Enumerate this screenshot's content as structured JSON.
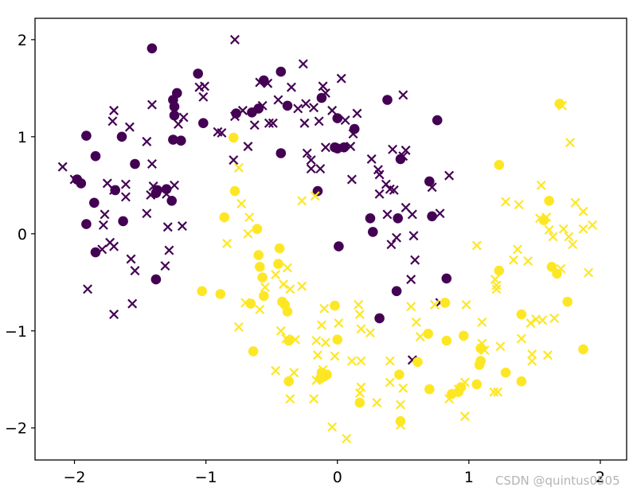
{
  "chart_data": {
    "type": "scatter",
    "title": "",
    "xlabel": "",
    "ylabel": "",
    "xlim": [
      -2.3,
      2.2
    ],
    "ylim": [
      -2.33,
      2.22
    ],
    "grid": false,
    "xticks": [
      -2,
      -1,
      0,
      1,
      2
    ],
    "yticks": [
      -2,
      -1,
      0,
      1,
      2
    ],
    "xtick_labels": [
      "−2",
      "−1",
      "0",
      "1",
      "2"
    ],
    "ytick_labels": [
      "−2",
      "−1",
      "0",
      "1",
      "2"
    ],
    "colors": {
      "class_0": "#440154",
      "class_1": "#fde725"
    },
    "series": [
      {
        "marker": "circle",
        "class": 0,
        "points": [
          [
            -1.41,
            1.91
          ],
          [
            -1.06,
            1.65
          ],
          [
            -0.56,
            1.58
          ],
          [
            -0.43,
            1.67
          ],
          [
            -0.12,
            1.4
          ],
          [
            -0.38,
            1.32
          ],
          [
            -1.22,
            1.45
          ],
          [
            -1.24,
            1.31
          ],
          [
            -1.25,
            1.38
          ],
          [
            -1.24,
            1.22
          ],
          [
            -1.02,
            1.14
          ],
          [
            -0.77,
            1.24
          ],
          [
            -0.65,
            1.25
          ],
          [
            0.0,
            1.19
          ],
          [
            0.13,
            1.08
          ],
          [
            -0.6,
            1.29
          ],
          [
            -1.91,
            1.01
          ],
          [
            -1.64,
            1.0
          ],
          [
            -1.19,
            0.96
          ],
          [
            -1.25,
            0.97
          ],
          [
            -0.43,
            0.83
          ],
          [
            -0.02,
            0.89
          ],
          [
            0.0,
            0.88
          ],
          [
            0.05,
            0.89
          ],
          [
            0.38,
            1.38
          ],
          [
            0.76,
            1.17
          ],
          [
            -1.84,
            0.8
          ],
          [
            -1.54,
            0.72
          ],
          [
            -1.98,
            0.56
          ],
          [
            -1.95,
            0.52
          ],
          [
            -1.85,
            0.32
          ],
          [
            -1.69,
            0.45
          ],
          [
            -1.38,
            0.42
          ],
          [
            -1.37,
            0.45
          ],
          [
            -1.3,
            0.46
          ],
          [
            -1.26,
            0.34
          ],
          [
            -0.15,
            0.44
          ],
          [
            0.48,
            0.77
          ],
          [
            0.7,
            0.54
          ],
          [
            -1.91,
            0.1
          ],
          [
            -1.63,
            0.13
          ],
          [
            -1.84,
            -0.19
          ],
          [
            -1.38,
            -0.47
          ],
          [
            0.01,
            -0.13
          ],
          [
            0.25,
            0.16
          ],
          [
            0.27,
            0.02
          ],
          [
            0.46,
            0.16
          ],
          [
            0.72,
            0.18
          ],
          [
            0.83,
            -0.46
          ],
          [
            0.45,
            -0.59
          ],
          [
            0.32,
            -0.87
          ]
        ]
      },
      {
        "marker": "x",
        "class": 0,
        "points": [
          [
            -0.78,
            2.0
          ],
          [
            -0.26,
            1.75
          ],
          [
            -0.59,
            1.56
          ],
          [
            -0.53,
            1.55
          ],
          [
            -0.35,
            1.51
          ],
          [
            -0.11,
            1.52
          ],
          [
            0.03,
            1.6
          ],
          [
            0.5,
            1.43
          ],
          [
            -1.05,
            1.51
          ],
          [
            -1.01,
            1.52
          ],
          [
            -1.02,
            1.41
          ],
          [
            -0.72,
            1.27
          ],
          [
            -0.57,
            1.32
          ],
          [
            -0.45,
            1.38
          ],
          [
            -0.3,
            1.29
          ],
          [
            -0.24,
            1.34
          ],
          [
            -0.18,
            1.3
          ],
          [
            -0.09,
            1.45
          ],
          [
            -0.04,
            1.27
          ],
          [
            0.15,
            1.24
          ],
          [
            -1.7,
            1.27
          ],
          [
            -1.41,
            1.33
          ],
          [
            -1.17,
            1.2
          ],
          [
            -1.21,
            1.13
          ],
          [
            -0.78,
            1.21
          ],
          [
            -0.63,
            1.12
          ],
          [
            -0.49,
            1.14
          ],
          [
            -0.52,
            1.14
          ],
          [
            -0.25,
            1.14
          ],
          [
            -0.14,
            1.16
          ],
          [
            0.06,
            1.17
          ],
          [
            -1.71,
            1.16
          ],
          [
            -1.58,
            1.1
          ],
          [
            -0.91,
            1.05
          ],
          [
            -0.88,
            1.04
          ],
          [
            -0.68,
            0.9
          ],
          [
            -0.09,
            0.89
          ],
          [
            0.1,
            0.9
          ],
          [
            0.12,
            1.03
          ],
          [
            0.42,
            0.87
          ],
          [
            0.52,
            0.86
          ],
          [
            0.5,
            0.8
          ],
          [
            -1.45,
            0.95
          ],
          [
            -0.79,
            0.76
          ],
          [
            -0.23,
            0.83
          ],
          [
            -0.2,
            0.76
          ],
          [
            -0.2,
            0.67
          ],
          [
            -0.13,
            0.67
          ],
          [
            0.11,
            0.56
          ],
          [
            0.26,
            0.77
          ],
          [
            0.31,
            0.66
          ],
          [
            0.32,
            0.61
          ],
          [
            0.37,
            0.51
          ],
          [
            0.4,
            0.46
          ],
          [
            -2.09,
            0.69
          ],
          [
            -2.0,
            0.56
          ],
          [
            -1.75,
            0.52
          ],
          [
            -1.7,
            0.45
          ],
          [
            -1.61,
            0.51
          ],
          [
            -1.4,
            0.49
          ],
          [
            -1.41,
            0.72
          ],
          [
            -1.24,
            0.5
          ],
          [
            -1.3,
            0.41
          ],
          [
            0.32,
            0.41
          ],
          [
            0.43,
            0.45
          ],
          [
            0.72,
            0.48
          ],
          [
            0.52,
            0.27
          ],
          [
            0.85,
            0.6
          ],
          [
            -1.77,
            0.2
          ],
          [
            -1.61,
            0.38
          ],
          [
            -1.42,
            0.4
          ],
          [
            -1.45,
            0.21
          ],
          [
            -1.29,
            0.07
          ],
          [
            -1.18,
            0.08
          ],
          [
            -1.78,
            0.09
          ],
          [
            -1.73,
            -0.09
          ],
          [
            -1.79,
            -0.16
          ],
          [
            -1.7,
            -0.13
          ],
          [
            -1.57,
            -0.26
          ],
          [
            -1.54,
            -0.38
          ],
          [
            -1.31,
            -0.33
          ],
          [
            -1.28,
            -0.17
          ],
          [
            -1.9,
            -0.57
          ],
          [
            -1.7,
            -0.83
          ],
          [
            -1.56,
            -0.72
          ],
          [
            0.57,
            0.2
          ],
          [
            0.78,
            0.21
          ],
          [
            0.38,
            0.2
          ],
          [
            0.41,
            -0.11
          ],
          [
            0.45,
            -0.04
          ],
          [
            0.58,
            -0.02
          ],
          [
            0.59,
            -0.27
          ],
          [
            0.56,
            -0.47
          ],
          [
            0.78,
            -0.71
          ],
          [
            0.57,
            -1.3
          ]
        ]
      },
      {
        "marker": "circle",
        "class": 1,
        "points": [
          [
            1.69,
            1.34
          ],
          [
            -0.79,
            0.99
          ],
          [
            1.23,
            0.71
          ],
          [
            -0.78,
            0.44
          ],
          [
            1.61,
            0.34
          ],
          [
            -0.86,
            0.17
          ],
          [
            -0.61,
            0.05
          ],
          [
            1.57,
            0.14
          ],
          [
            -0.6,
            -0.22
          ],
          [
            -0.59,
            -0.34
          ],
          [
            -0.57,
            -0.45
          ],
          [
            -0.44,
            -0.15
          ],
          [
            -0.45,
            -0.31
          ],
          [
            1.23,
            -0.38
          ],
          [
            1.63,
            -0.34
          ],
          [
            1.67,
            -0.41
          ],
          [
            -0.56,
            -0.64
          ],
          [
            -0.66,
            -0.72
          ],
          [
            -1.03,
            -0.59
          ],
          [
            -0.89,
            -0.62
          ],
          [
            -0.42,
            -0.7
          ],
          [
            -0.4,
            -0.73
          ],
          [
            -0.38,
            -0.8
          ],
          [
            1.75,
            -0.7
          ],
          [
            0.82,
            -0.71
          ],
          [
            -0.02,
            -0.74
          ],
          [
            -0.37,
            -1.1
          ],
          [
            0.0,
            -1.09
          ],
          [
            0.69,
            -1.03
          ],
          [
            0.83,
            -1.1
          ],
          [
            0.96,
            -1.05
          ],
          [
            1.09,
            -1.18
          ],
          [
            1.09,
            -1.31
          ],
          [
            1.4,
            -0.83
          ],
          [
            1.87,
            -1.19
          ],
          [
            -0.64,
            -1.21
          ],
          [
            -0.12,
            -1.43
          ],
          [
            -0.1,
            -1.47
          ],
          [
            -0.08,
            -1.45
          ],
          [
            -0.13,
            -1.49
          ],
          [
            0.61,
            -1.32
          ],
          [
            0.47,
            -1.45
          ],
          [
            1.08,
            -1.35
          ],
          [
            1.28,
            -1.43
          ],
          [
            -0.37,
            -1.52
          ],
          [
            0.7,
            -1.6
          ],
          [
            0.87,
            -1.65
          ],
          [
            0.92,
            -1.63
          ],
          [
            0.94,
            -1.58
          ],
          [
            1.06,
            -1.55
          ],
          [
            1.4,
            -1.52
          ],
          [
            0.17,
            -1.74
          ],
          [
            0.48,
            -1.93
          ]
        ]
      },
      {
        "marker": "x",
        "class": 1,
        "points": [
          [
            1.71,
            1.32
          ],
          [
            1.77,
            0.94
          ],
          [
            -0.75,
            0.68
          ],
          [
            -0.73,
            0.31
          ],
          [
            -0.67,
            0.17
          ],
          [
            -0.68,
            0.0
          ],
          [
            -0.84,
            -0.1
          ],
          [
            -0.27,
            0.34
          ],
          [
            -0.17,
            0.39
          ],
          [
            1.28,
            0.33
          ],
          [
            1.38,
            0.3
          ],
          [
            1.55,
            0.5
          ],
          [
            1.54,
            0.16
          ],
          [
            1.59,
            0.17
          ],
          [
            1.61,
            0.04
          ],
          [
            1.64,
            -0.03
          ],
          [
            1.76,
            -0.03
          ],
          [
            1.72,
            0.05
          ],
          [
            1.81,
            0.32
          ],
          [
            1.87,
            0.23
          ],
          [
            1.87,
            0.05
          ],
          [
            1.94,
            0.09
          ],
          [
            1.79,
            -0.11
          ],
          [
            1.06,
            -0.12
          ],
          [
            1.37,
            -0.16
          ],
          [
            1.34,
            -0.27
          ],
          [
            1.45,
            -0.28
          ],
          [
            1.7,
            -0.36
          ],
          [
            1.91,
            -0.4
          ],
          [
            1.2,
            -0.47
          ],
          [
            1.21,
            -0.53
          ],
          [
            1.21,
            -0.57
          ],
          [
            -0.47,
            -0.42
          ],
          [
            -0.41,
            -0.52
          ],
          [
            -0.36,
            -0.57
          ],
          [
            -0.27,
            -0.54
          ],
          [
            -0.55,
            -0.55
          ],
          [
            -0.59,
            -0.78
          ],
          [
            -0.38,
            -0.35
          ],
          [
            -0.75,
            -0.96
          ],
          [
            -0.7,
            -0.71
          ],
          [
            0.16,
            -0.73
          ],
          [
            0.56,
            -0.75
          ],
          [
            0.98,
            -0.73
          ],
          [
            0.74,
            -0.73
          ],
          [
            1.51,
            -0.88
          ],
          [
            1.56,
            -0.89
          ],
          [
            1.65,
            -0.87
          ],
          [
            1.47,
            -0.92
          ],
          [
            -0.1,
            -0.77
          ],
          [
            0.17,
            -0.83
          ],
          [
            -0.12,
            -0.94
          ],
          [
            0.01,
            -0.92
          ],
          [
            0.18,
            -0.98
          ],
          [
            -0.43,
            -1.0
          ],
          [
            -0.39,
            -1.08
          ],
          [
            -0.32,
            -1.09
          ],
          [
            -0.16,
            -1.1
          ],
          [
            -0.09,
            -1.12
          ],
          [
            0.25,
            -1.02
          ],
          [
            0.6,
            -0.91
          ],
          [
            0.63,
            -1.06
          ],
          [
            1.1,
            -0.91
          ],
          [
            1.1,
            -1.13
          ],
          [
            1.12,
            -1.2
          ],
          [
            1.24,
            -1.16
          ],
          [
            1.4,
            -1.08
          ],
          [
            1.48,
            -1.24
          ],
          [
            1.48,
            -1.31
          ],
          [
            1.6,
            -1.25
          ],
          [
            -0.15,
            -1.25
          ],
          [
            -0.02,
            -1.26
          ],
          [
            0.11,
            -1.31
          ],
          [
            0.18,
            -1.31
          ],
          [
            0.4,
            -1.31
          ],
          [
            -0.47,
            -1.41
          ],
          [
            -0.33,
            -1.43
          ],
          [
            -0.11,
            -1.4
          ],
          [
            -0.16,
            -1.51
          ],
          [
            -0.36,
            -1.7
          ],
          [
            -0.18,
            -1.7
          ],
          [
            0.18,
            -1.58
          ],
          [
            0.17,
            -1.64
          ],
          [
            0.3,
            -1.74
          ],
          [
            0.4,
            -1.53
          ],
          [
            0.48,
            -1.76
          ],
          [
            0.5,
            -1.59
          ],
          [
            0.85,
            -1.7
          ],
          [
            0.92,
            -1.6
          ],
          [
            0.97,
            -1.53
          ],
          [
            1.19,
            -1.63
          ],
          [
            1.22,
            -1.63
          ],
          [
            0.97,
            -1.88
          ],
          [
            -0.04,
            -1.99
          ],
          [
            0.07,
            -2.11
          ],
          [
            0.48,
            -1.97
          ]
        ]
      }
    ]
  },
  "watermark": "CSDN @quintus0505"
}
